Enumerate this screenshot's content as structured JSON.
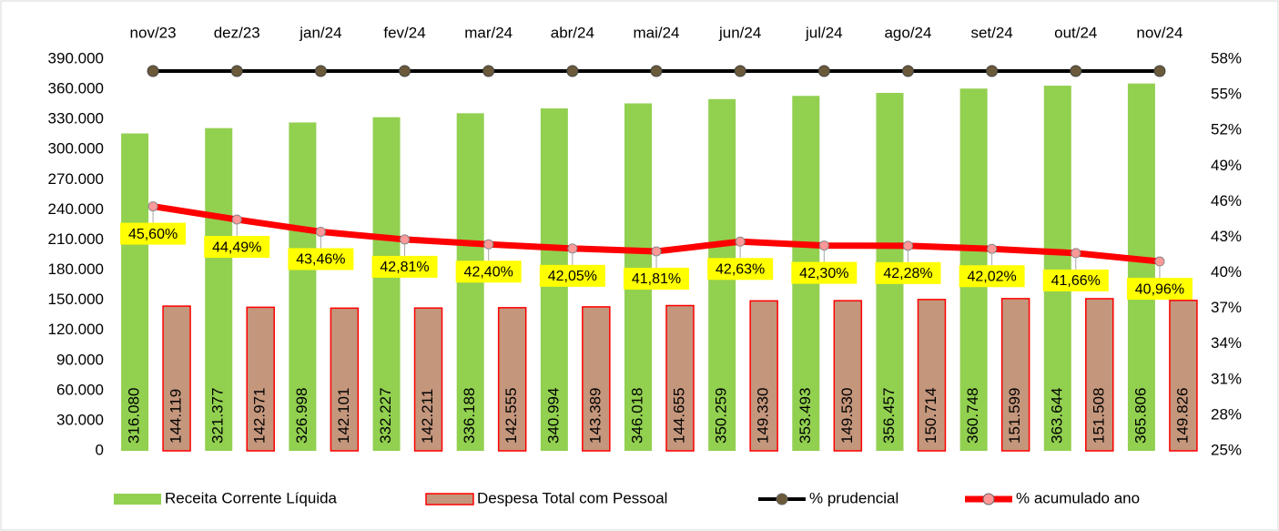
{
  "chart_data": {
    "type": "bar_line",
    "categories": [
      "nov/23",
      "dez/23",
      "jan/24",
      "fev/24",
      "mar/24",
      "abr/24",
      "mai/24",
      "jun/24",
      "jul/24",
      "ago/24",
      "set/24",
      "out/24",
      "nov/24"
    ],
    "series": [
      {
        "name": "Receita Corrente Líquida",
        "type": "bar",
        "color": "#92d050",
        "values": [
          316080,
          321377,
          326998,
          332227,
          336188,
          340994,
          346018,
          350259,
          353493,
          356457,
          360748,
          363644,
          365806
        ],
        "value_labels": [
          "316.080",
          "321.377",
          "326.998",
          "332.227",
          "336.188",
          "340.994",
          "346.018",
          "350.259",
          "353.493",
          "356.457",
          "360.748",
          "363.644",
          "365.806"
        ]
      },
      {
        "name": "Despesa Total com Pessoal",
        "type": "bar",
        "color": "#c4967c",
        "edge_color": "#ff0000",
        "values": [
          144119,
          142971,
          142101,
          142211,
          142555,
          143389,
          144655,
          149330,
          149530,
          150714,
          151599,
          151508,
          149826
        ],
        "value_labels": [
          "144.119",
          "142.971",
          "142.101",
          "142.211",
          "142.555",
          "143.389",
          "144.655",
          "149.330",
          "149.530",
          "150.714",
          "151.599",
          "151.508",
          "149.826"
        ]
      },
      {
        "name": "% prudencial",
        "type": "line",
        "axis": "y2",
        "color": "#000000",
        "marker_color": "#6b5a3a",
        "values": [
          57,
          57,
          57,
          57,
          57,
          57,
          57,
          57,
          57,
          57,
          57,
          57,
          57
        ]
      },
      {
        "name": "% acumulado ano",
        "type": "line",
        "axis": "y2",
        "color": "#ff0000",
        "marker_color": "#ff9999",
        "values": [
          45.6,
          44.49,
          43.46,
          42.81,
          42.4,
          42.05,
          41.81,
          42.63,
          42.3,
          42.28,
          42.02,
          41.66,
          40.96
        ],
        "value_labels": [
          "45,60%",
          "44,49%",
          "43,46%",
          "42,81%",
          "42,40%",
          "42,05%",
          "41,81%",
          "42,63%",
          "42,30%",
          "42,28%",
          "42,02%",
          "41,66%",
          "40,96%"
        ],
        "label_color": "#ffff00"
      }
    ],
    "ylim": [
      0,
      390000
    ],
    "yticks": [
      0,
      {
        "value": 30000,
        "label": "30.000"
      },
      {
        "value": 60000,
        "label": "60.000"
      },
      {
        "value": 90000,
        "label": "90.000"
      },
      {
        "value": 120000,
        "label": "120.000"
      },
      {
        "value": 150000,
        "label": "150.000"
      },
      {
        "value": 180000,
        "label": "180.000"
      },
      {
        "value": 210000,
        "label": "210.000"
      },
      {
        "value": 240000,
        "label": "240.000"
      },
      {
        "value": 270000,
        "label": "270.000"
      },
      {
        "value": 300000,
        "label": "300.000"
      },
      {
        "value": 330000,
        "label": "330.000"
      },
      {
        "value": 360000,
        "label": "360.000"
      },
      {
        "value": 390000,
        "label": "390.000"
      }
    ],
    "y2lim": [
      25,
      58
    ],
    "y2ticks": [
      {
        "value": 25,
        "label": "25%"
      },
      {
        "value": 28,
        "label": "28%"
      },
      {
        "value": 31,
        "label": "31%"
      },
      {
        "value": 34,
        "label": "34%"
      },
      {
        "value": 37,
        "label": "37%"
      },
      {
        "value": 40,
        "label": "40%"
      },
      {
        "value": 43,
        "label": "43%"
      },
      {
        "value": 46,
        "label": "46%"
      },
      {
        "value": 49,
        "label": "49%"
      },
      {
        "value": 52,
        "label": "52%"
      },
      {
        "value": 55,
        "label": "55%"
      },
      {
        "value": 58,
        "label": "58%"
      }
    ],
    "grid": false,
    "legend": "bottom"
  }
}
